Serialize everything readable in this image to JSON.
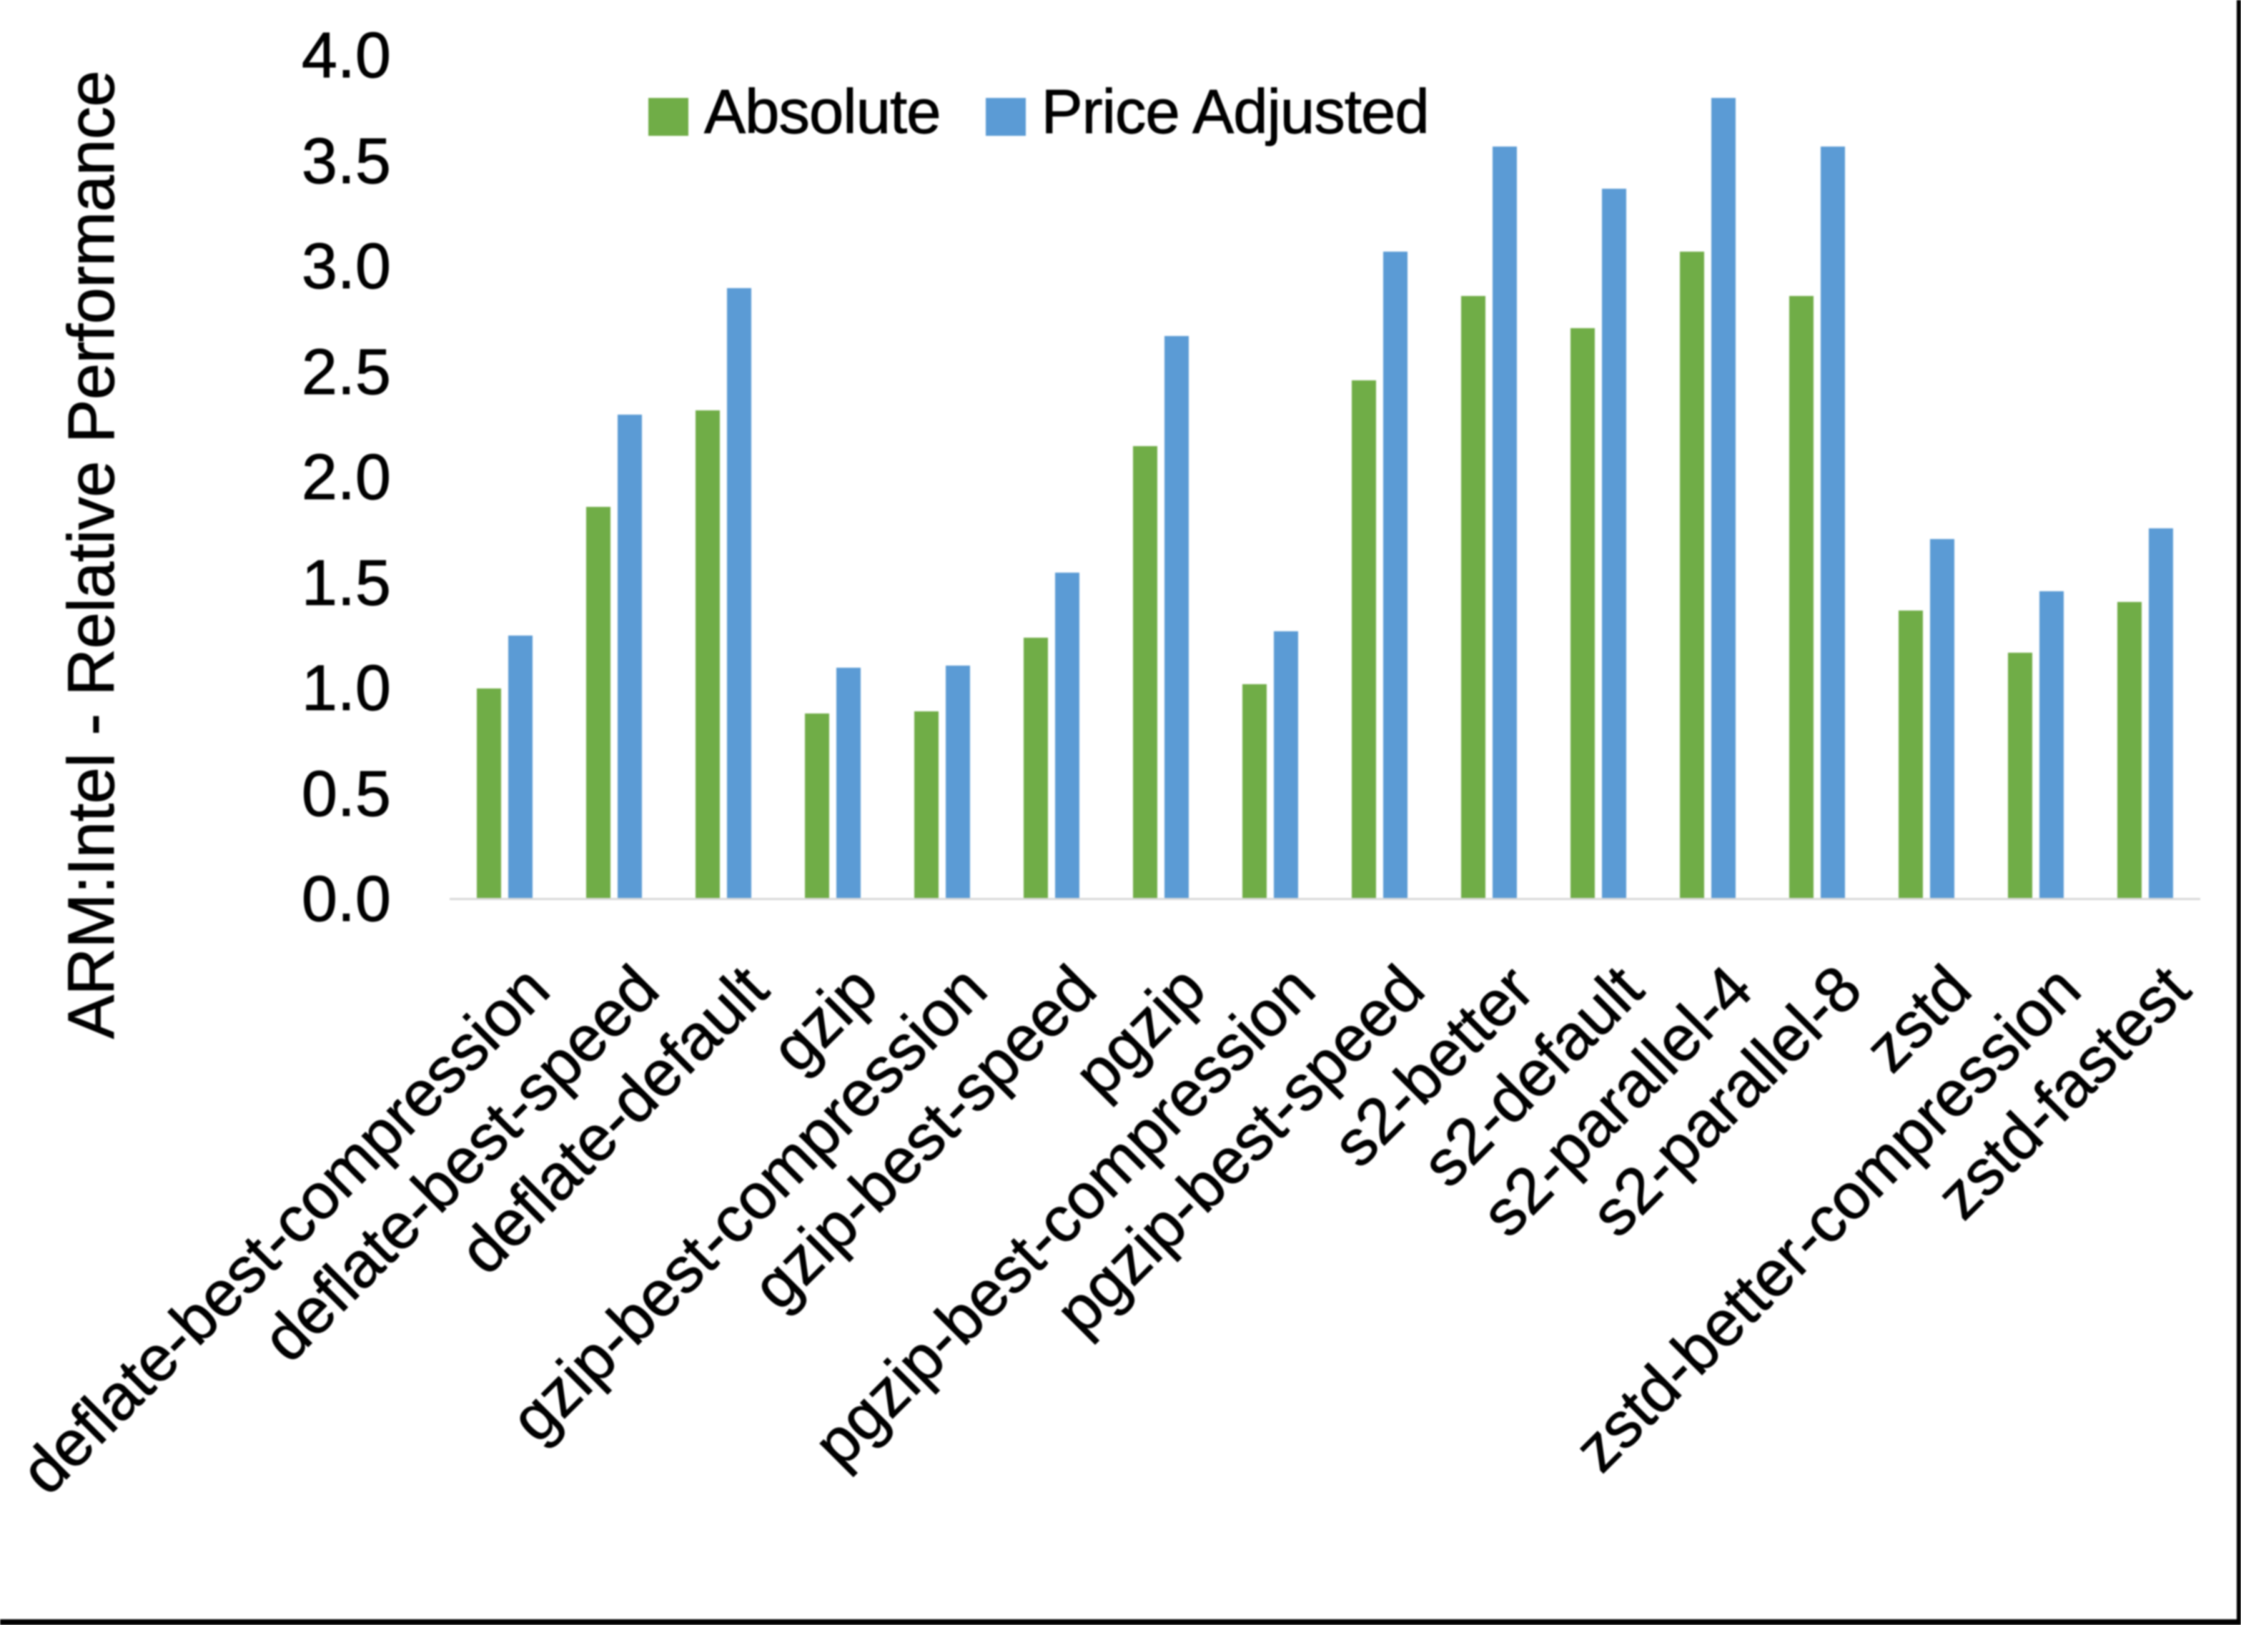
{
  "chart_data": {
    "type": "bar",
    "title": "",
    "ylabel": "ARM:Intel - Relative Performance",
    "xlabel": "",
    "ylim": [
      0.0,
      4.0
    ],
    "ytick_step": 0.5,
    "ytick_labels": [
      "0.0",
      "0.5",
      "1.0",
      "1.5",
      "2.0",
      "2.5",
      "3.0",
      "3.5",
      "4.0"
    ],
    "grid": false,
    "legend_position": "top",
    "categories": [
      "deflate-best-compression",
      "deflate-best-speed",
      "deflate-default",
      "gzip",
      "gzip-best-compression",
      "gzip-best-speed",
      "pgzip",
      "pgzip-best-compression",
      "pgzip-best-speed",
      "s2-better",
      "s2-default",
      "s2-parallel-4",
      "s2-parallel-8",
      "zstd",
      "zstd-better-compression",
      "zstd-fastest"
    ],
    "series": [
      {
        "name": "Absolute",
        "color": "#70ad47",
        "values": [
          1.0,
          1.86,
          2.32,
          0.88,
          0.89,
          1.24,
          2.15,
          1.02,
          2.46,
          2.86,
          2.71,
          3.07,
          2.86,
          1.37,
          1.17,
          1.41
        ]
      },
      {
        "name": "Price Adjusted",
        "color": "#5b9bd5",
        "values": [
          1.25,
          2.3,
          2.9,
          1.1,
          1.11,
          1.55,
          2.67,
          1.27,
          3.07,
          3.57,
          3.37,
          3.8,
          3.57,
          1.71,
          1.46,
          1.76
        ]
      }
    ],
    "colors": {
      "axis_line": "#d9d9d9",
      "text": "#000000",
      "background": "#ffffff"
    }
  }
}
